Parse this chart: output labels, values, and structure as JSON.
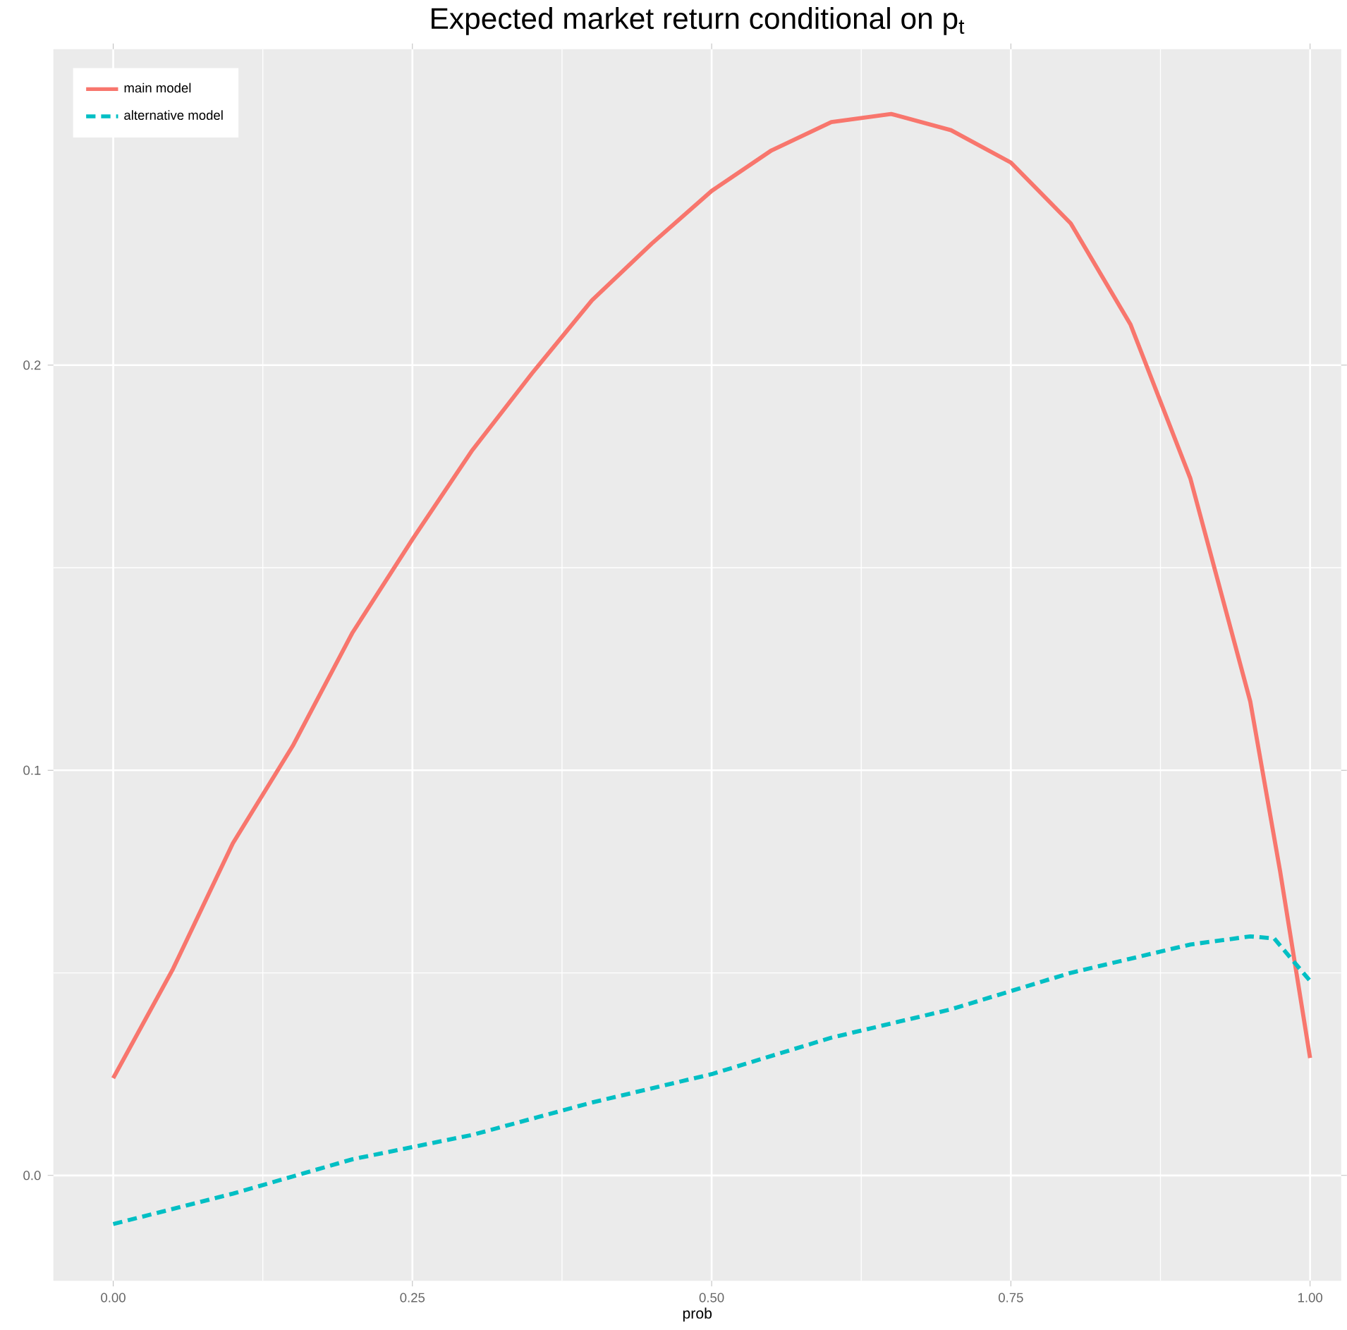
{
  "chart_data": {
    "type": "line",
    "title": "Expected market return conditional on p$_{t}$",
    "xlabel": "prob",
    "xlim": [
      -0.05,
      1.026
    ],
    "ylim": [
      -0.026,
      0.278
    ],
    "xticks": [
      {
        "value": 0,
        "label": "0.00"
      },
      {
        "value": 0.25,
        "label": "0.25"
      },
      {
        "value": 0.5,
        "label": "0.50"
      },
      {
        "value": 0.75,
        "label": "0.75"
      },
      {
        "value": 1,
        "label": "1.00"
      }
    ],
    "yticks": [
      {
        "value": 0,
        "label": "0.0"
      },
      {
        "value": 0.1,
        "label": "0.1"
      },
      {
        "value": 0.2,
        "label": "0.2"
      }
    ],
    "grid": true,
    "legend": "top left",
    "series": [
      {
        "name": "main model",
        "color": "#f8766d",
        "line_style": "solid",
        "x": [
          0,
          0.05,
          0.1,
          0.15,
          0.2,
          0.25,
          0.3,
          0.35,
          0.4,
          0.45,
          0.5,
          0.55,
          0.6,
          0.65,
          0.7,
          0.75,
          0.8,
          0.85,
          0.9,
          0.95,
          0.975,
          1.0
        ],
        "values": [
          0.024,
          0.051,
          0.082,
          0.106,
          0.134,
          0.157,
          0.179,
          0.198,
          0.216,
          0.23,
          0.243,
          0.253,
          0.26,
          0.262,
          0.258,
          0.25,
          0.235,
          0.21,
          0.172,
          0.117,
          0.075,
          0.029
        ]
      },
      {
        "name": "alternative model",
        "color": "#00bfc4",
        "line_style": "dashed",
        "x": [
          0,
          0.1,
          0.2,
          0.3,
          0.4,
          0.5,
          0.6,
          0.7,
          0.8,
          0.9,
          0.95,
          0.97,
          1.0
        ],
        "values": [
          -0.012,
          -0.0045,
          0.004,
          0.01,
          0.018,
          0.025,
          0.034,
          0.041,
          0.05,
          0.057,
          0.059,
          0.0585,
          0.048
        ]
      }
    ]
  }
}
